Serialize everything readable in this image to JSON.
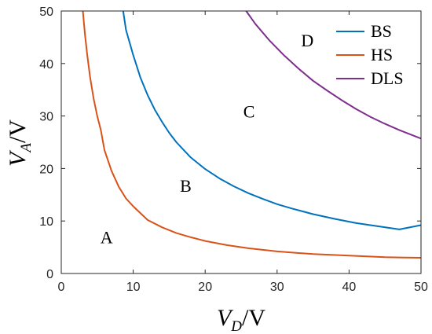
{
  "chart_data": {
    "type": "line",
    "xlim": [
      0,
      50
    ],
    "ylim": [
      0,
      50
    ],
    "x_ticks": [
      0,
      10,
      20,
      30,
      40,
      50
    ],
    "y_ticks": [
      0,
      10,
      20,
      30,
      40,
      50
    ],
    "x_tick_labels": [
      "0",
      "10",
      "20",
      "30",
      "40",
      "50"
    ],
    "y_tick_labels": [
      "0",
      "10",
      "20",
      "30",
      "40",
      "50"
    ],
    "xlabel": {
      "var": "V",
      "sub": "D",
      "unit": "/V"
    },
    "ylabel": {
      "var": "V",
      "sub": "A",
      "unit": "/V"
    },
    "grid": false,
    "legend_position": "top-right",
    "series": [
      {
        "name": "BS",
        "color": "#0072BD",
        "x": [
          8.6,
          9,
          10,
          11,
          12,
          13,
          14,
          15,
          16,
          18,
          20,
          22,
          24,
          26,
          28,
          30,
          32,
          35,
          38,
          41,
          44,
          47,
          50
        ],
        "y": [
          50,
          46.4,
          41.6,
          37.3,
          34.0,
          31.2,
          28.9,
          26.8,
          25.0,
          22.1,
          19.9,
          18.1,
          16.6,
          15.3,
          14.2,
          13.2,
          12.4,
          11.3,
          10.4,
          9.6,
          9.0,
          8.4,
          9.2
        ]
      },
      {
        "name": "HS",
        "color": "#D95319",
        "x": [
          3.0,
          3.3,
          3.6,
          4,
          4.5,
          5,
          5.5,
          6,
          7,
          8,
          9,
          10,
          12,
          14,
          16,
          18,
          20,
          23,
          26,
          30,
          35,
          40,
          45,
          50
        ],
        "y": [
          50,
          45.5,
          41.7,
          37.5,
          33.3,
          30.0,
          27.3,
          23.5,
          19.5,
          16.5,
          14.3,
          12.8,
          10.2,
          8.8,
          7.7,
          6.9,
          6.2,
          5.4,
          4.8,
          4.2,
          3.7,
          3.4,
          3.1,
          3.0
        ]
      },
      {
        "name": "DLS",
        "color": "#7E2F8E",
        "x": [
          25.7,
          27,
          29,
          31,
          33,
          35,
          37,
          39,
          41,
          43,
          45,
          47,
          50
        ],
        "y": [
          50,
          47.5,
          44.3,
          41.5,
          39.0,
          36.7,
          34.8,
          33.0,
          31.3,
          29.8,
          28.5,
          27.3,
          25.7
        ]
      }
    ],
    "annotations": [
      {
        "text": "A",
        "x": 6.3,
        "y": 6.5
      },
      {
        "text": "B",
        "x": 17.3,
        "y": 16.3
      },
      {
        "text": "C",
        "x": 26.1,
        "y": 30.5
      },
      {
        "text": "D",
        "x": 34.2,
        "y": 44.0
      }
    ]
  }
}
